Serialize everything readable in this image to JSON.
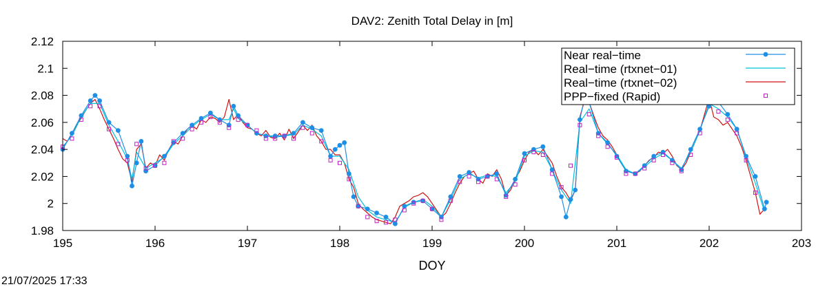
{
  "timestamp": "21/07/2025 17:33",
  "chart_data": {
    "type": "line",
    "title": "DAV2: Zenith Total Delay in [m]",
    "xlabel": "DOY",
    "ylabel": "",
    "xlim": [
      195,
      203
    ],
    "ylim": [
      1.98,
      2.12
    ],
    "xticks": [
      195,
      196,
      197,
      198,
      199,
      200,
      201,
      202,
      203
    ],
    "xtick_labels": [
      "195",
      "196",
      "197",
      "198",
      "199",
      "200",
      "201",
      "202",
      "203"
    ],
    "yticks": [
      1.98,
      2.0,
      2.02,
      2.04,
      2.06,
      2.08,
      2.1,
      2.12
    ],
    "ytick_labels": [
      "1.98",
      "2",
      "2.02",
      "2.04",
      "2.06",
      "2.08",
      "2.1",
      "2.12"
    ],
    "grid": false,
    "legend_position": "top-right",
    "series": [
      {
        "name": "Near real−time",
        "color": "#1f8fe6",
        "style": "line-points",
        "x": [
          195.0,
          195.1,
          195.2,
          195.3,
          195.35,
          195.4,
          195.5,
          195.6,
          195.7,
          195.75,
          195.8,
          195.85,
          195.9,
          196.0,
          196.1,
          196.2,
          196.3,
          196.4,
          196.5,
          196.6,
          196.7,
          196.8,
          196.85,
          196.9,
          197.0,
          197.1,
          197.2,
          197.3,
          197.4,
          197.5,
          197.6,
          197.7,
          197.8,
          197.9,
          197.95,
          198.0,
          198.05,
          198.1,
          198.15,
          198.2,
          198.3,
          198.4,
          198.5,
          198.6,
          198.7,
          198.8,
          198.9,
          199.0,
          199.1,
          199.2,
          199.3,
          199.4,
          199.5,
          199.6,
          199.7,
          199.8,
          199.9,
          200.0,
          200.1,
          200.2,
          200.3,
          200.4,
          200.45,
          200.5,
          200.55,
          200.6,
          200.65,
          200.7,
          200.8,
          200.9,
          201.0,
          201.1,
          201.2,
          201.3,
          201.4,
          201.5,
          201.6,
          201.7,
          201.8,
          201.9,
          202.0,
          202.05,
          202.1,
          202.2,
          202.3,
          202.4,
          202.5,
          202.6,
          202.62
        ],
        "y": [
          2.04,
          2.052,
          2.065,
          2.076,
          2.08,
          2.076,
          2.06,
          2.054,
          2.035,
          2.013,
          2.03,
          2.046,
          2.024,
          2.028,
          2.035,
          2.045,
          2.052,
          2.058,
          2.063,
          2.067,
          2.062,
          2.058,
          2.072,
          2.065,
          2.058,
          2.052,
          2.05,
          2.05,
          2.05,
          2.052,
          2.06,
          2.056,
          2.054,
          2.035,
          2.04,
          2.043,
          2.045,
          2.022,
          2.005,
          1.998,
          1.996,
          1.993,
          1.99,
          1.985,
          1.998,
          2.001,
          2.002,
          1.996,
          1.99,
          2.005,
          2.02,
          2.023,
          2.018,
          2.02,
          2.022,
          2.006,
          2.018,
          2.037,
          2.04,
          2.042,
          2.025,
          2.005,
          1.99,
          2.003,
          2.01,
          2.062,
          2.078,
          2.075,
          2.052,
          2.045,
          2.035,
          2.024,
          2.022,
          2.028,
          2.035,
          2.038,
          2.032,
          2.025,
          2.04,
          2.055,
          2.072,
          2.083,
          2.075,
          2.066,
          2.055,
          2.035,
          2.02,
          1.996,
          2.001
        ]
      },
      {
        "name": "Real−time (rtxnet−01)",
        "color": "#00c0d8",
        "style": "line",
        "x": [
          195.0,
          195.1,
          195.2,
          195.3,
          195.4,
          195.5,
          195.6,
          195.7,
          195.75,
          195.8,
          195.9,
          196.0,
          196.1,
          196.2,
          196.3,
          196.4,
          196.5,
          196.6,
          196.7,
          196.8,
          196.85,
          196.9,
          197.0,
          197.1,
          197.2,
          197.3,
          197.4,
          197.5,
          197.6,
          197.7,
          197.8,
          197.9,
          198.0,
          198.1,
          198.2,
          198.3,
          198.4,
          198.5,
          198.6,
          198.7,
          198.8,
          198.9,
          199.0,
          199.1,
          199.2,
          199.3,
          199.4,
          199.5,
          199.6,
          199.7,
          199.8,
          199.9,
          200.0,
          200.1,
          200.2,
          200.3,
          200.4,
          200.5,
          200.6,
          200.7,
          200.8,
          200.9,
          201.0,
          201.1,
          201.2,
          201.3,
          201.4,
          201.5,
          201.6,
          201.7,
          201.8,
          201.9,
          202.0,
          202.1,
          202.2,
          202.3,
          202.4,
          202.5,
          202.6
        ],
        "y": [
          2.042,
          2.05,
          2.064,
          2.074,
          2.074,
          2.058,
          2.046,
          2.033,
          2.018,
          2.038,
          2.026,
          2.03,
          2.034,
          2.044,
          2.05,
          2.057,
          2.062,
          2.066,
          2.062,
          2.062,
          2.07,
          2.063,
          2.058,
          2.052,
          2.05,
          2.049,
          2.05,
          2.051,
          2.058,
          2.055,
          2.05,
          2.035,
          2.035,
          2.025,
          2.005,
          1.995,
          1.99,
          1.988,
          1.986,
          1.997,
          2.001,
          2.003,
          1.998,
          1.99,
          2.003,
          2.018,
          2.022,
          2.019,
          2.021,
          2.02,
          2.008,
          2.016,
          2.035,
          2.039,
          2.038,
          2.025,
          2.01,
          2.0,
          2.06,
          2.07,
          2.052,
          2.044,
          2.036,
          2.025,
          2.022,
          2.027,
          2.033,
          2.037,
          2.032,
          2.026,
          2.038,
          2.054,
          2.074,
          2.07,
          2.064,
          2.055,
          2.034,
          2.015,
          1.994
        ]
      },
      {
        "name": "Real−time (rtxnet−02)",
        "color": "#d01010",
        "style": "line",
        "x": [
          195.0,
          195.05,
          195.1,
          195.15,
          195.2,
          195.25,
          195.3,
          195.35,
          195.4,
          195.45,
          195.5,
          195.55,
          195.6,
          195.65,
          195.7,
          195.75,
          195.8,
          195.85,
          195.9,
          195.95,
          196.0,
          196.05,
          196.1,
          196.15,
          196.2,
          196.25,
          196.3,
          196.35,
          196.4,
          196.45,
          196.5,
          196.55,
          196.6,
          196.65,
          196.7,
          196.75,
          196.8,
          196.85,
          196.9,
          196.95,
          197.0,
          197.05,
          197.1,
          197.15,
          197.2,
          197.25,
          197.3,
          197.35,
          197.4,
          197.45,
          197.5,
          197.55,
          197.6,
          197.65,
          197.7,
          197.75,
          197.8,
          197.85,
          197.9,
          197.95,
          198.0,
          198.05,
          198.1,
          198.15,
          198.2,
          198.25,
          198.3,
          198.35,
          198.4,
          198.45,
          198.5,
          198.55,
          198.6,
          198.65,
          198.7,
          198.75,
          198.8,
          198.85,
          198.9,
          198.95,
          199.0,
          199.05,
          199.1,
          199.15,
          199.2,
          199.25,
          199.3,
          199.35,
          199.4,
          199.45,
          199.5,
          199.55,
          199.6,
          199.65,
          199.7,
          199.75,
          199.8,
          199.85,
          199.9,
          199.95,
          200.0,
          200.05,
          200.1,
          200.15,
          200.2,
          200.25,
          200.3,
          200.35,
          200.4,
          200.45,
          200.5,
          200.55,
          200.6,
          200.65,
          200.7,
          200.75,
          200.8,
          200.85,
          200.9,
          200.95,
          201.0,
          201.05,
          201.1,
          201.15,
          201.2,
          201.25,
          201.3,
          201.35,
          201.4,
          201.45,
          201.5,
          201.55,
          201.6,
          201.65,
          201.7,
          201.75,
          201.8,
          201.85,
          201.9,
          201.95,
          202.0,
          202.05,
          202.1,
          202.15,
          202.2,
          202.25,
          202.3,
          202.35,
          202.4,
          202.45,
          202.5,
          202.55,
          202.6
        ],
        "y": [
          2.048,
          2.046,
          2.052,
          2.058,
          2.063,
          2.069,
          2.074,
          2.077,
          2.07,
          2.062,
          2.055,
          2.048,
          2.04,
          2.033,
          2.03,
          2.016,
          2.04,
          2.044,
          2.026,
          2.03,
          2.028,
          2.036,
          2.032,
          2.04,
          2.046,
          2.044,
          2.05,
          2.055,
          2.058,
          2.055,
          2.062,
          2.06,
          2.064,
          2.063,
          2.06,
          2.064,
          2.077,
          2.062,
          2.066,
          2.06,
          2.056,
          2.055,
          2.052,
          2.05,
          2.054,
          2.049,
          2.048,
          2.052,
          2.047,
          2.055,
          2.048,
          2.053,
          2.058,
          2.054,
          2.058,
          2.05,
          2.046,
          2.04,
          2.04,
          2.036,
          2.036,
          2.03,
          2.018,
          2.012,
          2.0,
          1.996,
          1.993,
          1.99,
          1.988,
          1.987,
          1.986,
          1.985,
          1.99,
          1.998,
          2.0,
          2.002,
          2.005,
          2.006,
          2.008,
          2.005,
          2.0,
          1.995,
          1.99,
          1.993,
          2.0,
          2.008,
          2.015,
          2.02,
          2.022,
          2.024,
          2.018,
          2.015,
          2.022,
          2.02,
          2.025,
          2.018,
          2.006,
          2.01,
          2.018,
          2.024,
          2.032,
          2.038,
          2.04,
          2.036,
          2.04,
          2.035,
          2.03,
          2.02,
          2.012,
          2.008,
          2.002,
          2.01,
          2.064,
          2.076,
          2.075,
          2.065,
          2.056,
          2.05,
          2.047,
          2.042,
          2.036,
          2.03,
          2.024,
          2.023,
          2.022,
          2.024,
          2.028,
          2.032,
          2.034,
          2.038,
          2.037,
          2.04,
          2.035,
          2.028,
          2.025,
          2.03,
          2.038,
          2.046,
          2.054,
          2.066,
          2.078,
          2.064,
          2.062,
          2.058,
          2.06,
          2.055,
          2.05,
          2.042,
          2.032,
          2.02,
          2.008,
          1.992,
          1.996
        ]
      },
      {
        "name": "PPP−fixed (Rapid)",
        "color": "#c020c0",
        "style": "points-square",
        "x": [
          195.0,
          195.1,
          195.2,
          195.3,
          195.4,
          195.5,
          195.6,
          195.7,
          195.8,
          195.9,
          196.0,
          196.1,
          196.2,
          196.3,
          196.4,
          196.5,
          196.6,
          196.7,
          196.8,
          196.9,
          197.0,
          197.1,
          197.2,
          197.3,
          197.4,
          197.5,
          197.6,
          197.7,
          197.8,
          197.9,
          198.0,
          198.1,
          198.2,
          198.3,
          198.4,
          198.5,
          198.6,
          198.7,
          198.8,
          198.9,
          199.0,
          199.1,
          199.2,
          199.3,
          199.4,
          199.5,
          199.6,
          199.7,
          199.8,
          199.9,
          200.0,
          200.1,
          200.2,
          200.3,
          200.4,
          200.5,
          200.6,
          200.7,
          200.8,
          200.9,
          201.0,
          201.1,
          201.2,
          201.3,
          201.4,
          201.5,
          201.6,
          201.7,
          201.8,
          201.9,
          202.0,
          202.1,
          202.2,
          202.3,
          202.4,
          202.5
        ],
        "y": [
          2.042,
          2.048,
          2.062,
          2.072,
          2.072,
          2.055,
          2.044,
          2.032,
          2.044,
          2.026,
          2.028,
          2.03,
          2.046,
          2.048,
          2.055,
          2.06,
          2.064,
          2.06,
          2.056,
          2.062,
          2.058,
          2.054,
          2.048,
          2.048,
          2.05,
          2.048,
          2.056,
          2.052,
          2.046,
          2.032,
          2.03,
          2.018,
          1.998,
          1.99,
          1.987,
          1.986,
          1.988,
          1.995,
          2.0,
          2.002,
          1.996,
          1.988,
          2.002,
          2.016,
          2.02,
          2.016,
          2.02,
          2.018,
          2.005,
          2.014,
          2.032,
          2.038,
          2.036,
          2.022,
          2.012,
          2.028,
          2.058,
          2.066,
          2.05,
          2.042,
          2.034,
          2.022,
          2.022,
          2.026,
          2.032,
          2.036,
          2.03,
          2.024,
          2.036,
          2.052,
          2.078,
          2.068,
          2.062,
          2.052,
          2.032,
          2.008
        ]
      }
    ]
  }
}
